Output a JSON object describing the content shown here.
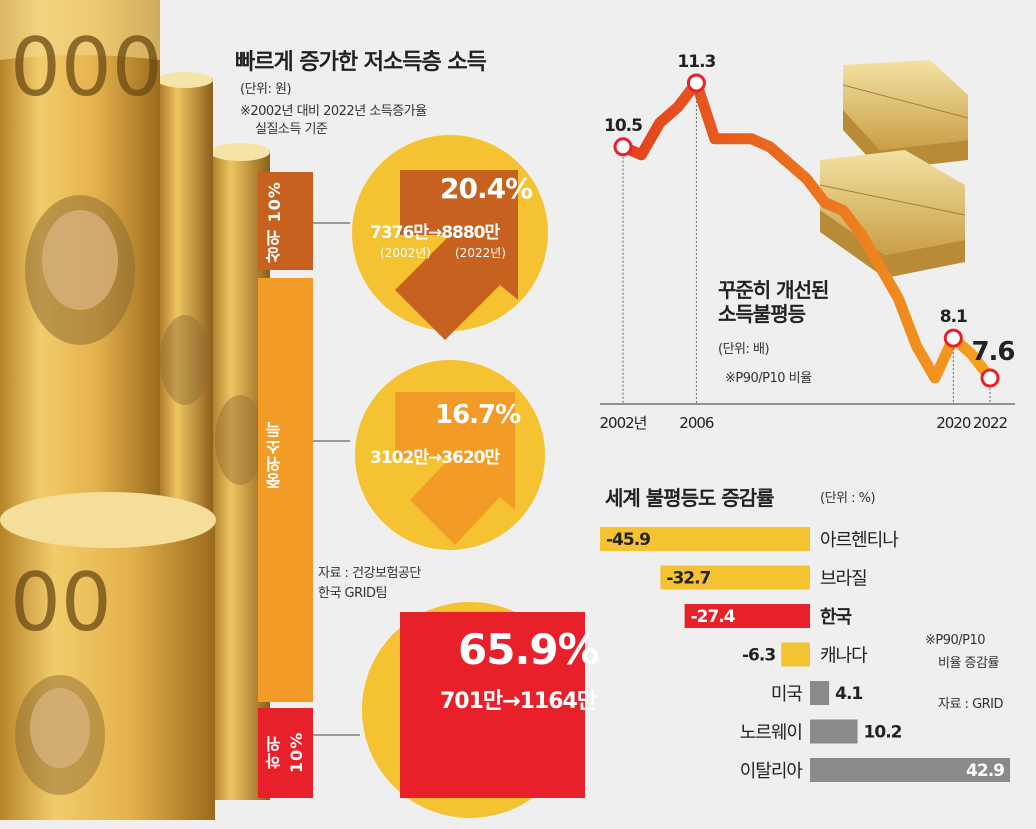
{
  "income": {
    "title": "빠르게 증가한 저소득층 소득",
    "unit": "(단위: 원)",
    "note1": "※2002년 대비 2022년 소득증가율",
    "note2": "실질소득 기준",
    "source1": "자료 : 건강보험공단",
    "source2": "한국 GRID팀",
    "groups": [
      {
        "label": "상위 10%",
        "growth": "20.4%",
        "amounts": "7376만→8880만",
        "year_from": "(2002년)",
        "year_to": "(2022년)"
      },
      {
        "label": "중위소득",
        "growth": "16.7%",
        "amounts": "3102만→3620만"
      },
      {
        "label": "하위 10%",
        "growth": "65.9%",
        "amounts": "701만→1164만"
      }
    ],
    "colors": {
      "top": "#c6611f",
      "mid": "#f29b26",
      "low": "#e8202a",
      "circle": "#f5c332"
    }
  },
  "chart_data": [
    {
      "type": "line",
      "title": "꾸준히 개선된 소득불평등",
      "unit": "(단위: 배)",
      "note": "※P90/P10 비율",
      "x_tick_labels": [
        "2002년",
        "2006",
        "2020",
        "2022"
      ],
      "labeled_points": [
        {
          "x": 2002,
          "y": 10.5,
          "label": "10.5"
        },
        {
          "x": 2006,
          "y": 11.3,
          "label": "11.3"
        },
        {
          "x": 2020,
          "y": 8.1,
          "label": "8.1"
        },
        {
          "x": 2022,
          "y": 7.6,
          "label": "7.6"
        }
      ],
      "series": [
        {
          "x": [
            2002,
            2003,
            2004,
            2005,
            2006,
            2007,
            2008,
            2009,
            2010,
            2011,
            2012,
            2013,
            2014,
            2015,
            2016,
            2017,
            2018,
            2019,
            2020,
            2021,
            2022
          ],
          "y": [
            10.5,
            10.4,
            10.8,
            11.0,
            11.3,
            10.6,
            10.6,
            10.6,
            10.5,
            10.3,
            10.1,
            9.8,
            9.7,
            9.4,
            9.0,
            8.6,
            8.0,
            7.6,
            8.1,
            7.9,
            7.6
          ]
        }
      ],
      "colors": {
        "start": "#e2411e",
        "end": "#f4a21e",
        "marker": "#e8202a"
      }
    },
    {
      "type": "bar",
      "title": "세계 불평등도 증감률",
      "unit": "(단위 : %)",
      "note1": "※P90/P10",
      "note2": "비율 증감률",
      "source": "자료 : GRID",
      "categories": [
        "아르헨티나",
        "브라질",
        "한국",
        "캐나다",
        "미국",
        "노르웨이",
        "이탈리아"
      ],
      "values": [
        -45.9,
        -32.7,
        -27.4,
        -6.3,
        4.1,
        10.2,
        42.9
      ],
      "value_labels": [
        "-45.9",
        "-32.7",
        "-27.4",
        "-6.3",
        "4.1",
        "10.2",
        "42.9"
      ],
      "highlight": "한국",
      "colors": {
        "negative": "#f5c332",
        "highlight": "#e8202a",
        "positive": "#8a8a8a"
      }
    }
  ]
}
